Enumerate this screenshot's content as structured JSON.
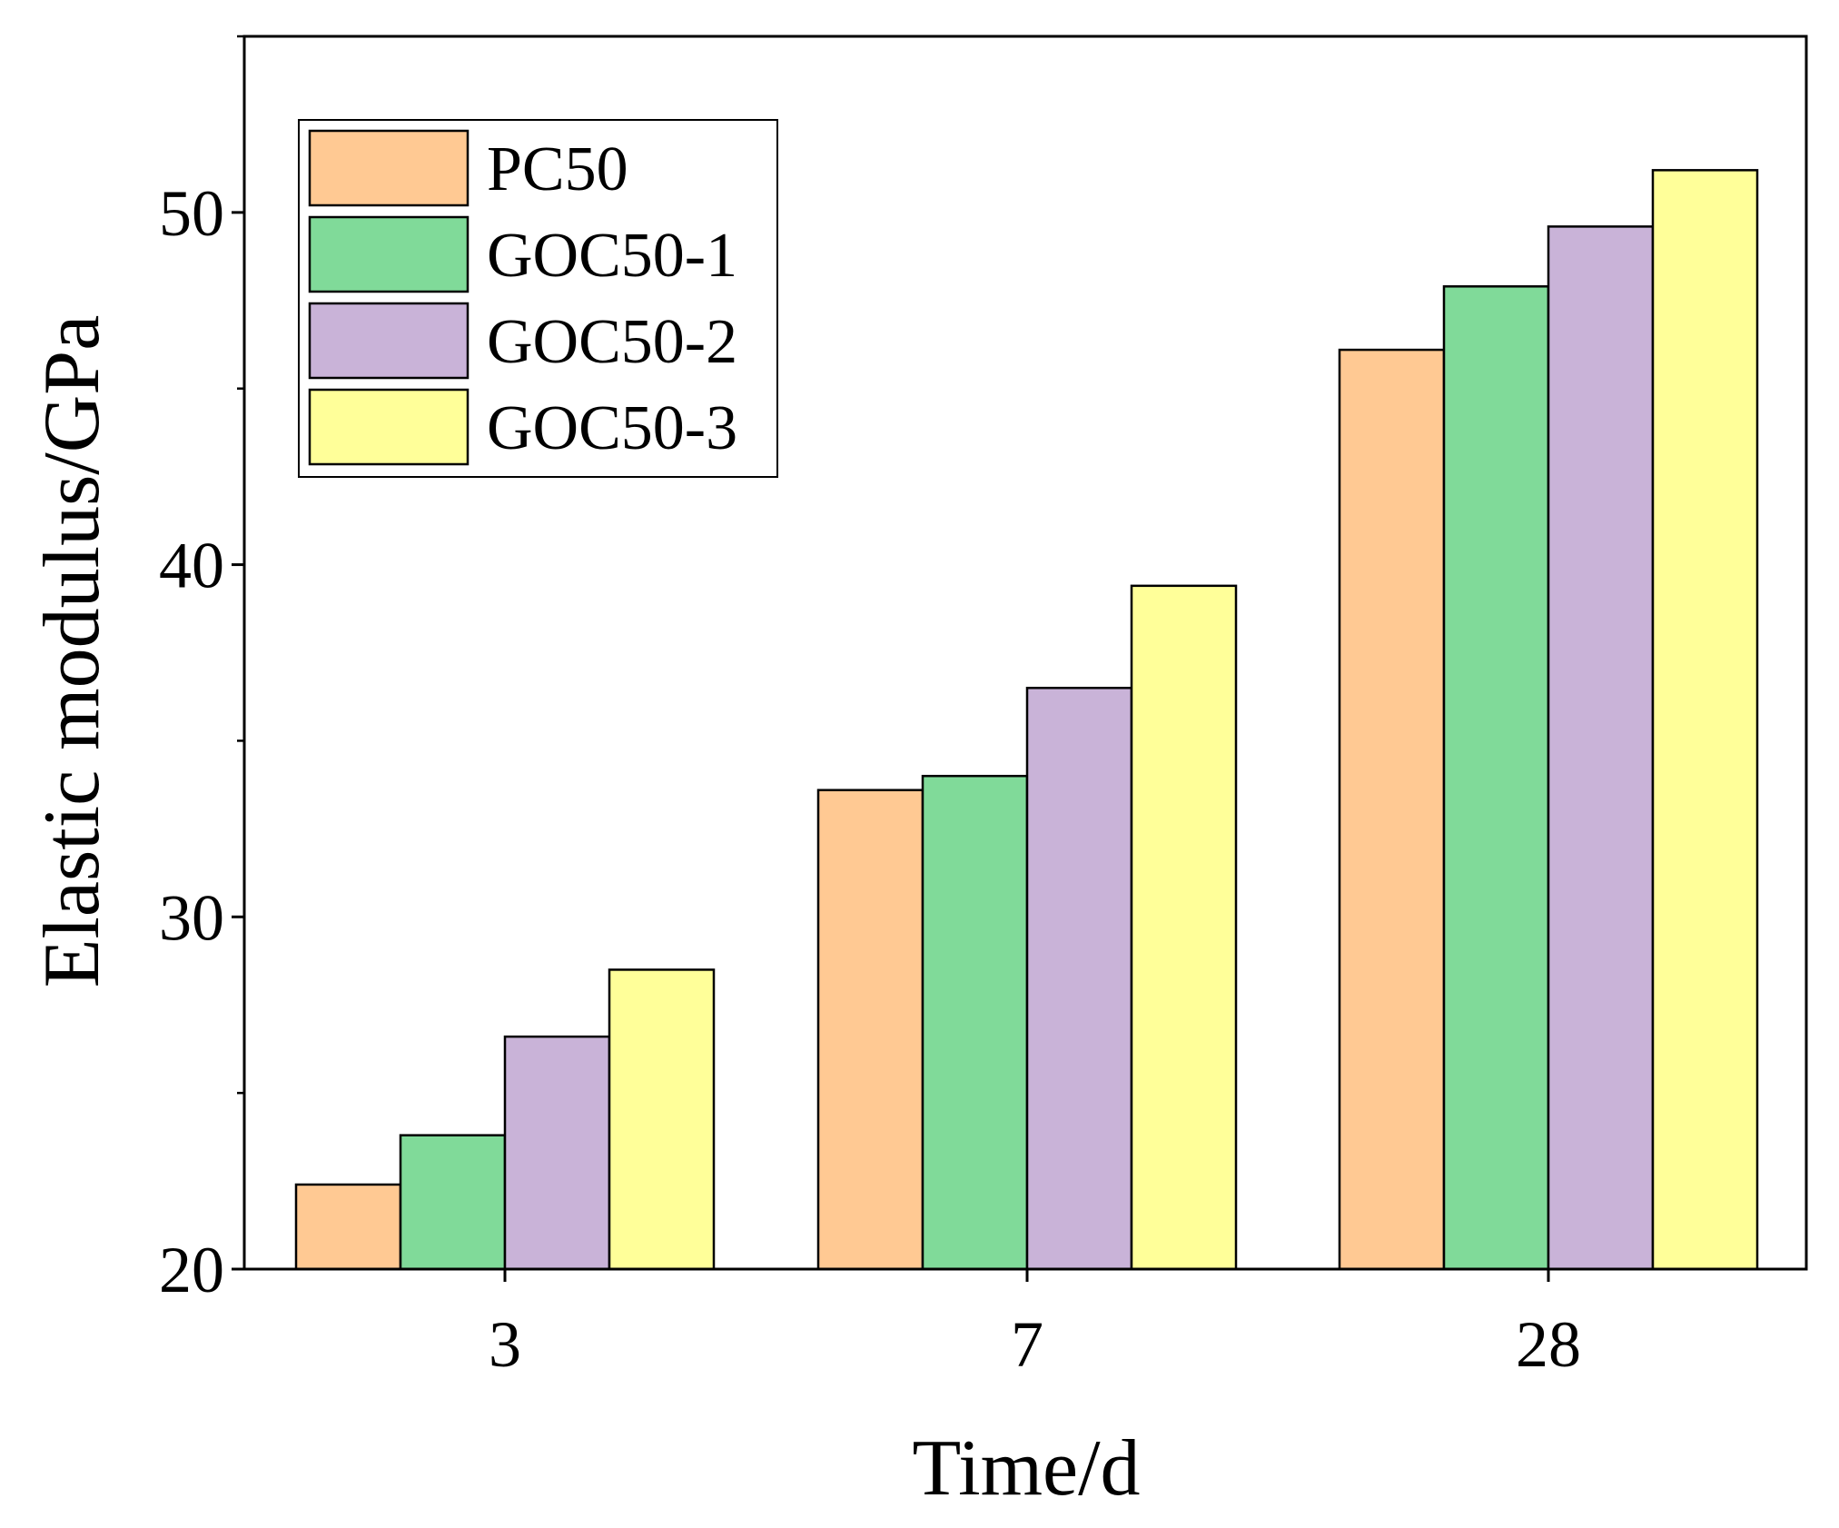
{
  "chart_data": {
    "type": "bar",
    "title": "",
    "xlabel": "Time/d",
    "ylabel": "Elastic modulus/GPa",
    "categories": [
      "3",
      "7",
      "28"
    ],
    "ylim": [
      20,
      55
    ],
    "yticks": [
      20,
      30,
      40,
      50
    ],
    "grid": false,
    "legend_position": "top-left",
    "series": [
      {
        "name": "PC50",
        "color": "#FFC993",
        "values": [
          22.4,
          33.6,
          46.1
        ]
      },
      {
        "name": "GOC50-1",
        "color": "#80DA99",
        "values": [
          23.8,
          34.0,
          47.9
        ]
      },
      {
        "name": "GOC50-2",
        "color": "#C9B3D8",
        "values": [
          26.6,
          36.5,
          49.6
        ]
      },
      {
        "name": "GOC50-3",
        "color": "#FFFF99",
        "values": [
          28.5,
          39.4,
          51.2
        ]
      }
    ]
  }
}
